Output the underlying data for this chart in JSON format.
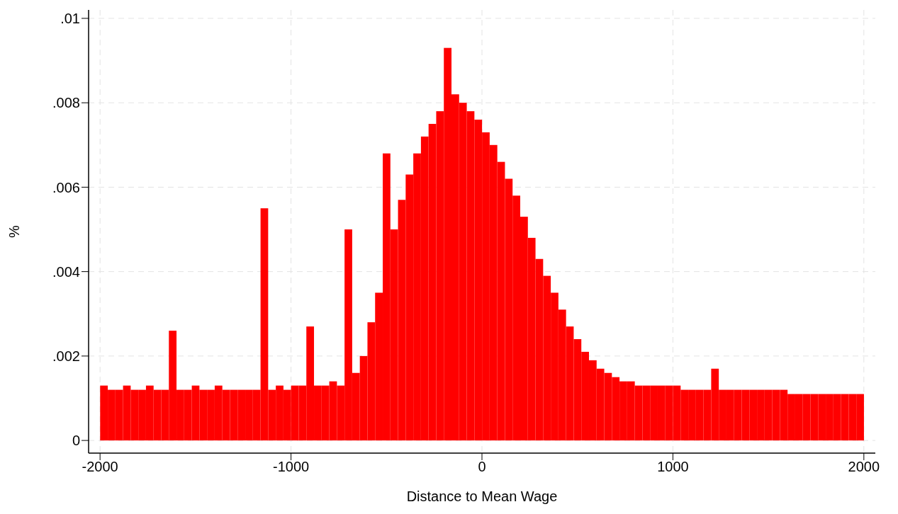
{
  "chart_data": {
    "type": "histogram",
    "xlabel": "Distance to Mean Wage",
    "ylabel": "%",
    "color": "#ff0000",
    "bins": [
      -2000,
      -1960,
      -1920,
      -1880,
      -1840,
      -1800,
      -1760,
      -1720,
      -1680,
      -1640,
      -1600,
      -1560,
      -1520,
      -1480,
      -1440,
      -1400,
      -1360,
      -1320,
      -1280,
      -1240,
      -1200,
      -1160,
      -1120,
      -1080,
      -1040,
      -1000,
      -960,
      -920,
      -880,
      -840,
      -800,
      -760,
      -720,
      -680,
      -640,
      -600,
      -560,
      -520,
      -480,
      -440,
      -400,
      -360,
      -320,
      -280,
      -240,
      -200,
      -160,
      -120,
      -80,
      -40,
      0,
      40,
      80,
      120,
      160,
      200,
      240,
      280,
      320,
      360,
      400,
      440,
      480,
      520,
      560,
      600,
      640,
      680,
      720,
      760,
      800,
      840,
      880,
      920,
      960,
      1000,
      1040,
      1080,
      1120,
      1160,
      1200,
      1240,
      1280,
      1320,
      1360,
      1400,
      1440,
      1480,
      1520,
      1560,
      1600,
      1640,
      1680,
      1720,
      1760,
      1800,
      1840,
      1880,
      1920,
      1960,
      2000
    ],
    "values": [
      0.0013,
      0.0012,
      0.0012,
      0.0013,
      0.0012,
      0.0012,
      0.0013,
      0.0012,
      0.0012,
      0.0026,
      0.0012,
      0.0012,
      0.0013,
      0.0012,
      0.0012,
      0.0013,
      0.0012,
      0.0012,
      0.0012,
      0.0012,
      0.0012,
      0.0055,
      0.0012,
      0.0013,
      0.0012,
      0.0013,
      0.0013,
      0.0027,
      0.0013,
      0.0013,
      0.0014,
      0.0013,
      0.005,
      0.0016,
      0.002,
      0.0028,
      0.0035,
      0.0068,
      0.005,
      0.0057,
      0.0063,
      0.0068,
      0.0072,
      0.0075,
      0.0078,
      0.0093,
      0.0082,
      0.008,
      0.0078,
      0.0076,
      0.0073,
      0.007,
      0.0066,
      0.0062,
      0.0058,
      0.0053,
      0.0048,
      0.0043,
      0.0039,
      0.0035,
      0.0031,
      0.0027,
      0.0024,
      0.0021,
      0.0019,
      0.0017,
      0.0016,
      0.0015,
      0.0014,
      0.0014,
      0.0013,
      0.0013,
      0.0013,
      0.0013,
      0.0013,
      0.0013,
      0.0012,
      0.0012,
      0.0012,
      0.0012,
      0.0017,
      0.0012,
      0.0012,
      0.0012,
      0.0012,
      0.0012,
      0.0012,
      0.0012,
      0.0012,
      0.0012,
      0.0011,
      0.0011,
      0.0011,
      0.0011,
      0.0011,
      0.0011,
      0.0011,
      0.0011,
      0.0011,
      0.0011
    ],
    "xlim": [
      -2060,
      2060
    ],
    "xticks": [
      -2000,
      -1000,
      0,
      1000,
      2000
    ],
    "ylim": [
      -0.0003,
      0.0102
    ],
    "yticks": [
      {
        "value": 0,
        "label": "0"
      },
      {
        "value": 0.002,
        "label": ".002"
      },
      {
        "value": 0.004,
        "label": ".004"
      },
      {
        "value": 0.006,
        "label": ".006"
      },
      {
        "value": 0.008,
        "label": ".008"
      },
      {
        "value": 0.01,
        "label": ".01"
      }
    ],
    "grid": true
  }
}
